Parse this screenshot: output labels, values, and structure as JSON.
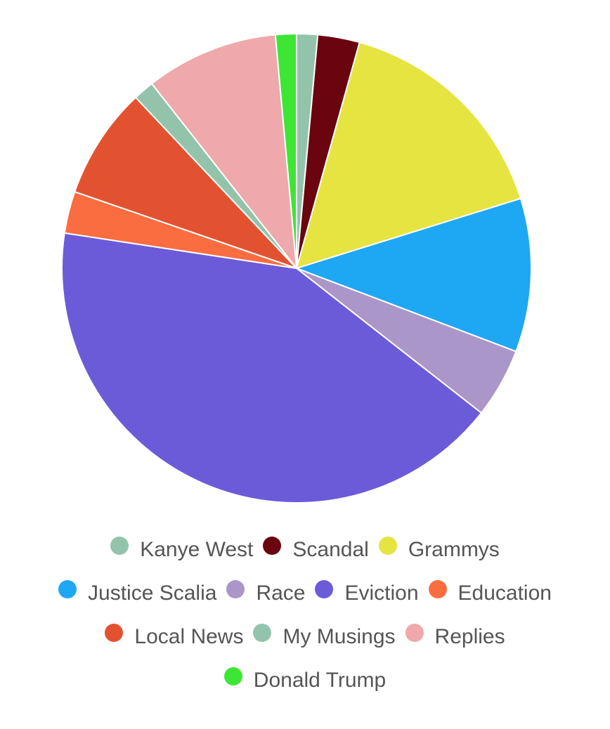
{
  "chart_data": {
    "type": "pie",
    "title": "",
    "start_angle_deg": -90,
    "direction": "clockwise",
    "legend_position": "bottom",
    "slices": [
      {
        "label": "Kanye West",
        "value": 1.5,
        "color": "#93c4ab"
      },
      {
        "label": "Scandal",
        "value": 3.0,
        "color": "#6a040f"
      },
      {
        "label": "Grammys",
        "value": 16.5,
        "color": "#e6e440"
      },
      {
        "label": "Justice Scalia",
        "value": 11.0,
        "color": "#1ea7f2"
      },
      {
        "label": "Race",
        "value": 5.0,
        "color": "#aa96c8"
      },
      {
        "label": "Eviction",
        "value": 43.5,
        "color": "#6c5bd9"
      },
      {
        "label": "Education",
        "value": 3.0,
        "color": "#f96d41"
      },
      {
        "label": "Local News",
        "value": 8.0,
        "color": "#e35230"
      },
      {
        "label": "My Musings",
        "value": 1.5,
        "color": "#93c4ab"
      },
      {
        "label": "Replies",
        "value": 9.5,
        "color": "#efa8ab"
      },
      {
        "label": "Donald Trump",
        "value": 1.5,
        "color": "#3de635"
      }
    ]
  }
}
